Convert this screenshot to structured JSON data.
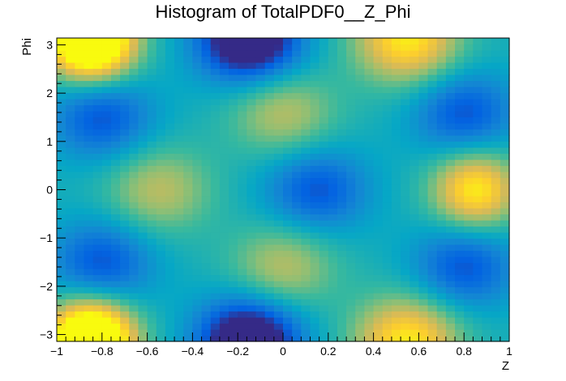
{
  "chart_data": {
    "type": "heatmap",
    "title": "Histogram of TotalPDF0__Z_Phi",
    "xlabel": "Z",
    "ylabel": "Phi",
    "xlim": [
      -1,
      1
    ],
    "ylim": [
      -3.14159,
      3.14159
    ],
    "nx": 50,
    "ny": 50,
    "colormap": "parula",
    "colorscale": [
      "#352a87",
      "#0363e1",
      "#1485d4",
      "#06a7c6",
      "#38b99e",
      "#92bf73",
      "#d9ba56",
      "#fcce2e",
      "#f9fb0e"
    ],
    "x_ticks": [
      -1,
      -0.8,
      -0.6,
      -0.4,
      -0.2,
      0,
      0.2,
      0.4,
      0.6,
      0.8,
      1
    ],
    "x_tick_labels": [
      "−1",
      "−0.8",
      "−0.6",
      "−0.4",
      "−0.2",
      "0",
      "0.2",
      "0.4",
      "0.6",
      "0.8",
      "1"
    ],
    "y_ticks": [
      -3,
      -2,
      -1,
      0,
      1,
      2,
      3
    ],
    "y_tick_labels": [
      "−3",
      "−2",
      "−1",
      "0",
      "1",
      "2",
      "3"
    ],
    "features": [
      {
        "kind": "max",
        "z": -0.85,
        "phi": 3.0,
        "level": "high"
      },
      {
        "kind": "max",
        "z": -0.85,
        "phi": -3.0,
        "level": "high"
      },
      {
        "kind": "max",
        "z": 0.85,
        "phi": 0.0,
        "level": "high"
      },
      {
        "kind": "max",
        "z": -0.55,
        "phi": 0.0,
        "level": "medium"
      },
      {
        "kind": "max",
        "z": 0.0,
        "phi": 1.6,
        "level": "medium"
      },
      {
        "kind": "max",
        "z": 0.0,
        "phi": -1.6,
        "level": "medium"
      },
      {
        "kind": "max",
        "z": 0.55,
        "phi": 3.0,
        "level": "medium"
      },
      {
        "kind": "max",
        "z": 0.55,
        "phi": -3.0,
        "level": "medium"
      },
      {
        "kind": "min",
        "z": -0.8,
        "phi": 1.5,
        "level": "low"
      },
      {
        "kind": "min",
        "z": -0.8,
        "phi": -1.5,
        "level": "low"
      },
      {
        "kind": "min",
        "z": 0.8,
        "phi": 1.6,
        "level": "low"
      },
      {
        "kind": "min",
        "z": 0.8,
        "phi": -1.6,
        "level": "low"
      },
      {
        "kind": "min",
        "z": 0.15,
        "phi": 0.0,
        "level": "low"
      },
      {
        "kind": "min",
        "z": -0.15,
        "phi": 3.0,
        "level": "low"
      },
      {
        "kind": "min",
        "z": -0.15,
        "phi": -3.0,
        "level": "low"
      }
    ]
  }
}
